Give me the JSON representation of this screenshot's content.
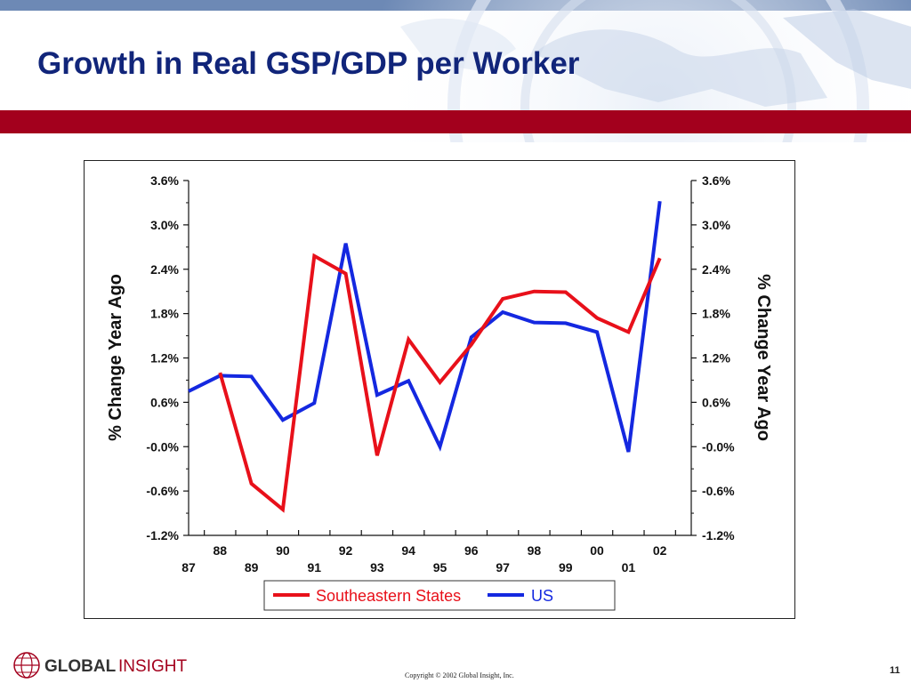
{
  "slide": {
    "title": "Growth in Real GSP/GDP per Worker",
    "footer_logo": {
      "word1": "GLOBAL",
      "word2": "INSIGHT"
    },
    "copyright": "Copyright © 2002 Global Insight, Inc.",
    "page_number": "11"
  },
  "colors": {
    "title": "#11257a",
    "band": "#a3001d",
    "top_strip": "#6d89b5",
    "southeastern": "#e8101a",
    "us": "#1428e0"
  },
  "chart_data": {
    "type": "line",
    "title": "",
    "ylabel_left": "% Change Year Ago",
    "ylabel_right": "% Change Year Ago",
    "ylim": [
      -1.2,
      3.6
    ],
    "y_ticks": [
      -1.2,
      -0.6,
      0.0,
      0.6,
      1.2,
      1.8,
      2.4,
      3.0,
      3.6
    ],
    "y_tick_labels": [
      "-1.2%",
      "-0.6%",
      "-0.0%",
      "0.6%",
      "1.2%",
      "1.8%",
      "2.4%",
      "3.0%",
      "3.6%"
    ],
    "x_labels_top": [
      "88",
      "90",
      "92",
      "94",
      "96",
      "98",
      "00",
      "02"
    ],
    "x_labels_bottom": [
      "87",
      "89",
      "91",
      "93",
      "95",
      "97",
      "99",
      "01"
    ],
    "grid": false,
    "legend": "bottom",
    "series": [
      {
        "name": "Southeastern States",
        "color": "#e8101a",
        "points": [
          [
            1988,
            1.0
          ],
          [
            1989,
            -0.5
          ],
          [
            1990,
            -0.85
          ],
          [
            1991,
            2.58
          ],
          [
            1992,
            2.34
          ],
          [
            1993,
            -0.12
          ],
          [
            1994,
            1.45
          ],
          [
            1995,
            0.87
          ],
          [
            1996,
            1.38
          ],
          [
            1997,
            2.0
          ],
          [
            1998,
            2.1
          ],
          [
            1999,
            2.09
          ],
          [
            2000,
            1.74
          ],
          [
            2001,
            1.55
          ],
          [
            2002,
            2.55
          ]
        ]
      },
      {
        "name": "US",
        "color": "#1428e0",
        "points": [
          [
            1987,
            0.75
          ],
          [
            1988,
            0.96
          ],
          [
            1989,
            0.95
          ],
          [
            1990,
            0.36
          ],
          [
            1991,
            0.59
          ],
          [
            1992,
            2.75
          ],
          [
            1993,
            0.7
          ],
          [
            1994,
            0.89
          ],
          [
            1995,
            0.0
          ],
          [
            1996,
            1.48
          ],
          [
            1997,
            1.82
          ],
          [
            1998,
            1.68
          ],
          [
            1999,
            1.67
          ],
          [
            2000,
            1.55
          ],
          [
            2001,
            -0.07
          ],
          [
            2002,
            3.32
          ]
        ]
      }
    ]
  }
}
